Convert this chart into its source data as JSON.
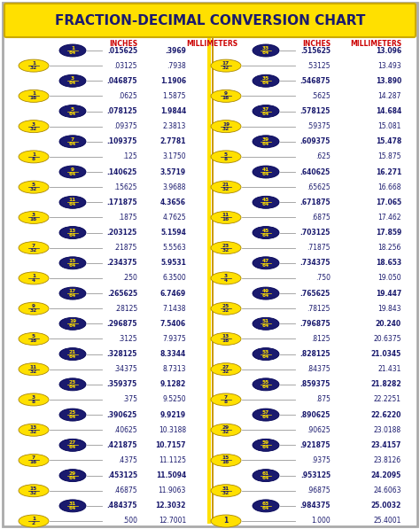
{
  "title": "FRACTION-DECIMAL CONVERSION CHART",
  "title_bg": "#FFE000",
  "title_color": "#1a1a6e",
  "bg_color": "#ffffff",
  "border_color": "#aaaaaa",
  "header_color": "#cc0000",
  "yellow_oval_color": "#FFE000",
  "yellow_oval_text": "#1a1a6e",
  "blue_oval_color": "#1a1a6e",
  "blue_oval_text": "#FFE000",
  "normal_text_color": "#1a1a6e",
  "left_rows": [
    {
      "num": "1",
      "den": "64",
      "yellow": false,
      "inches": ".015625",
      "mm": ".3969",
      "bold": true
    },
    {
      "num": "1",
      "den": "32",
      "yellow": true,
      "inches": ".03125",
      "mm": ".7938",
      "bold": false
    },
    {
      "num": "3",
      "den": "64",
      "yellow": false,
      "inches": ".046875",
      "mm": "1.1906",
      "bold": true
    },
    {
      "num": "1",
      "den": "16",
      "yellow": true,
      "inches": ".0625",
      "mm": "1.5875",
      "bold": false
    },
    {
      "num": "5",
      "den": "64",
      "yellow": false,
      "inches": ".078125",
      "mm": "1.9844",
      "bold": true
    },
    {
      "num": "3",
      "den": "32",
      "yellow": true,
      "inches": ".09375",
      "mm": "2.3813",
      "bold": false
    },
    {
      "num": "7",
      "den": "64",
      "yellow": false,
      "inches": ".109375",
      "mm": "2.7781",
      "bold": true
    },
    {
      "num": "1",
      "den": "8",
      "yellow": true,
      "inches": ".125",
      "mm": "3.1750",
      "bold": false
    },
    {
      "num": "9",
      "den": "64",
      "yellow": false,
      "inches": ".140625",
      "mm": "3.5719",
      "bold": true
    },
    {
      "num": "5",
      "den": "32",
      "yellow": true,
      "inches": ".15625",
      "mm": "3.9688",
      "bold": false
    },
    {
      "num": "11",
      "den": "64",
      "yellow": false,
      "inches": ".171875",
      "mm": "4.3656",
      "bold": true
    },
    {
      "num": "3",
      "den": "16",
      "yellow": true,
      "inches": ".1875",
      "mm": "4.7625",
      "bold": false
    },
    {
      "num": "13",
      "den": "64",
      "yellow": false,
      "inches": ".203125",
      "mm": "5.1594",
      "bold": true
    },
    {
      "num": "7",
      "den": "32",
      "yellow": true,
      "inches": ".21875",
      "mm": "5.5563",
      "bold": false
    },
    {
      "num": "15",
      "den": "64",
      "yellow": false,
      "inches": ".234375",
      "mm": "5.9531",
      "bold": true
    },
    {
      "num": "1",
      "den": "4",
      "yellow": true,
      "inches": ".250",
      "mm": "6.3500",
      "bold": false
    },
    {
      "num": "17",
      "den": "64",
      "yellow": false,
      "inches": ".265625",
      "mm": "6.7469",
      "bold": true
    },
    {
      "num": "9",
      "den": "32",
      "yellow": true,
      "inches": ".28125",
      "mm": "7.1438",
      "bold": false
    },
    {
      "num": "19",
      "den": "64",
      "yellow": false,
      "inches": ".296875",
      "mm": "7.5406",
      "bold": true
    },
    {
      "num": "5",
      "den": "16",
      "yellow": true,
      "inches": ".3125",
      "mm": "7.9375",
      "bold": false
    },
    {
      "num": "21",
      "den": "64",
      "yellow": false,
      "inches": ".328125",
      "mm": "8.3344",
      "bold": true
    },
    {
      "num": "11",
      "den": "32",
      "yellow": true,
      "inches": ".34375",
      "mm": "8.7313",
      "bold": false
    },
    {
      "num": "23",
      "den": "64",
      "yellow": false,
      "inches": ".359375",
      "mm": "9.1282",
      "bold": true
    },
    {
      "num": "3",
      "den": "8",
      "yellow": true,
      "inches": ".375",
      "mm": "9.5250",
      "bold": false
    },
    {
      "num": "25",
      "den": "64",
      "yellow": false,
      "inches": ".390625",
      "mm": "9.9219",
      "bold": true
    },
    {
      "num": "13",
      "den": "32",
      "yellow": true,
      "inches": ".40625",
      "mm": "10.3188",
      "bold": false
    },
    {
      "num": "27",
      "den": "64",
      "yellow": false,
      "inches": ".421875",
      "mm": "10.7157",
      "bold": true
    },
    {
      "num": "7",
      "den": "16",
      "yellow": true,
      "inches": ".4375",
      "mm": "11.1125",
      "bold": false
    },
    {
      "num": "29",
      "den": "64",
      "yellow": false,
      "inches": ".453125",
      "mm": "11.5094",
      "bold": true
    },
    {
      "num": "15",
      "den": "32",
      "yellow": true,
      "inches": ".46875",
      "mm": "11.9063",
      "bold": false
    },
    {
      "num": "31",
      "den": "64",
      "yellow": false,
      "inches": ".484375",
      "mm": "12.3032",
      "bold": true
    },
    {
      "num": "1",
      "den": "2",
      "yellow": true,
      "inches": ".500",
      "mm": "12.7001",
      "bold": false
    }
  ],
  "right_rows": [
    {
      "num": "33",
      "den": "64",
      "yellow": false,
      "inches": ".515625",
      "mm": "13.096",
      "bold": true
    },
    {
      "num": "17",
      "den": "32",
      "yellow": true,
      "inches": ".53125",
      "mm": "13.493",
      "bold": false
    },
    {
      "num": "35",
      "den": "64",
      "yellow": false,
      "inches": ".546875",
      "mm": "13.890",
      "bold": true
    },
    {
      "num": "9",
      "den": "16",
      "yellow": true,
      "inches": ".5625",
      "mm": "14.287",
      "bold": false
    },
    {
      "num": "37",
      "den": "64",
      "yellow": false,
      "inches": ".578125",
      "mm": "14.684",
      "bold": true
    },
    {
      "num": "19",
      "den": "32",
      "yellow": true,
      "inches": ".59375",
      "mm": "15.081",
      "bold": false
    },
    {
      "num": "39",
      "den": "64",
      "yellow": false,
      "inches": ".609375",
      "mm": "15.478",
      "bold": true
    },
    {
      "num": "5",
      "den": "8",
      "yellow": true,
      "inches": ".625",
      "mm": "15.875",
      "bold": false
    },
    {
      "num": "41",
      "den": "64",
      "yellow": false,
      "inches": ".640625",
      "mm": "16.271",
      "bold": true
    },
    {
      "num": "21",
      "den": "32",
      "yellow": true,
      "inches": ".65625",
      "mm": "16.668",
      "bold": false
    },
    {
      "num": "43",
      "den": "64",
      "yellow": false,
      "inches": ".671875",
      "mm": "17.065",
      "bold": true
    },
    {
      "num": "11",
      "den": "16",
      "yellow": true,
      "inches": ".6875",
      "mm": "17.462",
      "bold": false
    },
    {
      "num": "45",
      "den": "64",
      "yellow": false,
      "inches": ".703125",
      "mm": "17.859",
      "bold": true
    },
    {
      "num": "23",
      "den": "32",
      "yellow": true,
      "inches": ".71875",
      "mm": "18.256",
      "bold": false
    },
    {
      "num": "47",
      "den": "64",
      "yellow": false,
      "inches": ".734375",
      "mm": "18.653",
      "bold": true
    },
    {
      "num": "3",
      "den": "4",
      "yellow": true,
      "inches": ".750",
      "mm": "19.050",
      "bold": false
    },
    {
      "num": "49",
      "den": "64",
      "yellow": false,
      "inches": ".765625",
      "mm": "19.447",
      "bold": true
    },
    {
      "num": "25",
      "den": "32",
      "yellow": true,
      "inches": ".78125",
      "mm": "19.843",
      "bold": false
    },
    {
      "num": "51",
      "den": "64",
      "yellow": false,
      "inches": ".796875",
      "mm": "20.240",
      "bold": true
    },
    {
      "num": "13",
      "den": "16",
      "yellow": true,
      "inches": ".8125",
      "mm": "20.6375",
      "bold": false
    },
    {
      "num": "53",
      "den": "64",
      "yellow": false,
      "inches": ".828125",
      "mm": "21.0345",
      "bold": true
    },
    {
      "num": "27",
      "den": "32",
      "yellow": true,
      "inches": ".84375",
      "mm": "21.431",
      "bold": false
    },
    {
      "num": "55",
      "den": "64",
      "yellow": false,
      "inches": ".859375",
      "mm": "21.8282",
      "bold": true
    },
    {
      "num": "7",
      "den": "8",
      "yellow": true,
      "inches": ".875",
      "mm": "22.2251",
      "bold": false
    },
    {
      "num": "57",
      "den": "64",
      "yellow": false,
      "inches": ".890625",
      "mm": "22.6220",
      "bold": true
    },
    {
      "num": "29",
      "den": "32",
      "yellow": true,
      "inches": ".90625",
      "mm": "23.0188",
      "bold": false
    },
    {
      "num": "59",
      "den": "64",
      "yellow": false,
      "inches": ".921875",
      "mm": "23.4157",
      "bold": true
    },
    {
      "num": "15",
      "den": "16",
      "yellow": true,
      "inches": ".9375",
      "mm": "23.8126",
      "bold": false
    },
    {
      "num": "61",
      "den": "64",
      "yellow": false,
      "inches": ".953125",
      "mm": "24.2095",
      "bold": true
    },
    {
      "num": "31",
      "den": "32",
      "yellow": true,
      "inches": ".96875",
      "mm": "24.6063",
      "bold": false
    },
    {
      "num": "63",
      "den": "64",
      "yellow": false,
      "inches": ".984375",
      "mm": "25.0032",
      "bold": true
    },
    {
      "num": "1",
      "den": "1",
      "yellow": true,
      "inches": "1.000",
      "mm": "25.4001",
      "bold": false
    }
  ]
}
